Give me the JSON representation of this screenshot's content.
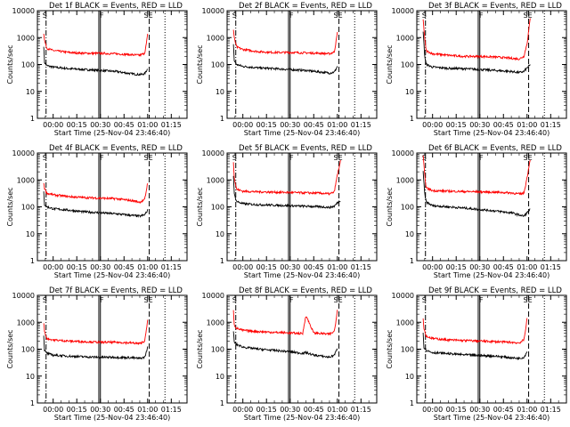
{
  "common": {
    "xlabel": "Start Time (25-Nov-04 23:46:40)",
    "ylabel": "Counts/sec",
    "x_tick_labels": [
      "00:00",
      "00:15",
      "00:30",
      "00:45",
      "01:00",
      "01:15"
    ],
    "x_tick_minutes": [
      0,
      15,
      30,
      45,
      60,
      75
    ],
    "y_tick_labels": [
      "1",
      "10",
      "100",
      "1000",
      "10000"
    ],
    "y_tick_values": [
      1,
      10,
      100,
      1000,
      10000
    ],
    "marker_labels": {
      "start": "S",
      "flare": "F",
      "end": "E"
    },
    "colors": {
      "events": "#000000",
      "lld": "#ff0000"
    }
  },
  "chart_data": [
    {
      "type": "line",
      "title": "Det 1f BLACK = Events, RED = LLD",
      "xlim": [
        -10,
        85
      ],
      "ylim": [
        1,
        10000
      ],
      "yscale": "log",
      "x": [
        -6,
        -5.5,
        -4,
        0,
        10,
        20,
        30,
        40,
        50,
        55,
        58,
        59,
        60
      ],
      "series": [
        {
          "name": "Events",
          "values": [
            500,
            120,
            90,
            80,
            70,
            65,
            60,
            55,
            45,
            42,
            45,
            55,
            70
          ]
        },
        {
          "name": "LLD",
          "values": [
            1500,
            800,
            400,
            330,
            280,
            260,
            260,
            250,
            230,
            220,
            260,
            500,
            1300
          ]
        }
      ],
      "markers": {
        "start": -4.5,
        "flare": [
          29,
          30
        ],
        "end": [
          61,
          71
        ],
        "labels": [
          "S",
          "F",
          "SE"
        ]
      }
    },
    {
      "type": "line",
      "title": "Det 2f BLACK = Events, RED = LLD",
      "xlim": [
        -10,
        85
      ],
      "ylim": [
        1,
        10000
      ],
      "yscale": "log",
      "x": [
        -6,
        -5.5,
        -4,
        0,
        10,
        20,
        30,
        40,
        50,
        55,
        58,
        59,
        60
      ],
      "series": [
        {
          "name": "Events",
          "values": [
            600,
            140,
            100,
            85,
            75,
            70,
            65,
            60,
            52,
            48,
            52,
            65,
            85
          ]
        },
        {
          "name": "LLD",
          "values": [
            2000,
            1000,
            450,
            360,
            300,
            280,
            280,
            270,
            260,
            250,
            290,
            600,
            1500
          ]
        }
      ],
      "markers": {
        "start": -4.5,
        "flare": [
          29,
          30
        ],
        "end": [
          61,
          71
        ],
        "labels": [
          "S",
          "F",
          "SE"
        ]
      }
    },
    {
      "type": "line",
      "title": "Det 3f BLACK = Events, RED = LLD",
      "xlim": [
        -10,
        85
      ],
      "ylim": [
        1,
        10000
      ],
      "yscale": "log",
      "x": [
        -6,
        -5,
        -4,
        0,
        10,
        20,
        30,
        40,
        50,
        55,
        58,
        60,
        62
      ],
      "series": [
        {
          "name": "Events",
          "values": [
            1800,
            200,
            100,
            80,
            72,
            70,
            65,
            60,
            55,
            50,
            55,
            75,
            95
          ]
        },
        {
          "name": "LLD",
          "values": [
            5000,
            900,
            320,
            250,
            220,
            200,
            200,
            190,
            170,
            160,
            200,
            600,
            5000
          ]
        }
      ],
      "markers": {
        "start": -4.5,
        "flare": [
          29,
          30
        ],
        "end": [
          61,
          71
        ],
        "labels": [
          "S",
          "F",
          "SE"
        ]
      }
    },
    {
      "type": "line",
      "title": "Det 4f BLACK = Events, RED = LLD",
      "xlim": [
        -10,
        85
      ],
      "ylim": [
        1,
        10000
      ],
      "yscale": "log",
      "x": [
        -6,
        -5.5,
        -4,
        0,
        10,
        20,
        30,
        40,
        50,
        55,
        58,
        59,
        60
      ],
      "series": [
        {
          "name": "Events",
          "values": [
            400,
            120,
            100,
            85,
            75,
            65,
            60,
            55,
            48,
            45,
            50,
            60,
            75
          ]
        },
        {
          "name": "LLD",
          "values": [
            800,
            500,
            320,
            280,
            240,
            220,
            210,
            200,
            170,
            150,
            180,
            350,
            800
          ]
        }
      ],
      "markers": {
        "start": -4.5,
        "flare": [
          29,
          30
        ],
        "end": [
          61,
          71
        ],
        "labels": [
          "S",
          "F",
          "SE"
        ]
      }
    },
    {
      "type": "line",
      "title": "Det 5f BLACK = Events, RED = LLD",
      "xlim": [
        -10,
        85
      ],
      "ylim": [
        1,
        10000
      ],
      "yscale": "log",
      "x": [
        -6,
        -5.5,
        -4,
        0,
        10,
        20,
        30,
        40,
        50,
        55,
        58,
        60,
        62
      ],
      "series": [
        {
          "name": "Events",
          "values": [
            1500,
            300,
            160,
            130,
            120,
            115,
            110,
            105,
            100,
            95,
            105,
            140,
            170
          ]
        },
        {
          "name": "LLD",
          "values": [
            5000,
            1200,
            450,
            380,
            360,
            350,
            340,
            330,
            320,
            300,
            350,
            1500,
            5000
          ]
        }
      ],
      "markers": {
        "start": -4.5,
        "flare": [
          29,
          30
        ],
        "end": [
          61,
          71
        ],
        "labels": [
          "S",
          "F",
          "SE"
        ]
      }
    },
    {
      "type": "line",
      "title": "Det 6f BLACK = Events, RED = LLD",
      "xlim": [
        -10,
        85
      ],
      "ylim": [
        1,
        10000
      ],
      "yscale": "log",
      "x": [
        -6,
        -5,
        -4,
        0,
        10,
        20,
        30,
        40,
        50,
        55,
        58,
        60,
        62
      ],
      "series": [
        {
          "name": "Events",
          "values": [
            2000,
            300,
            150,
            110,
            100,
            90,
            80,
            70,
            60,
            50,
            45,
            60,
            80
          ]
        },
        {
          "name": "LLD",
          "values": [
            8000,
            1500,
            500,
            400,
            380,
            370,
            360,
            350,
            330,
            300,
            320,
            1200,
            6000
          ]
        }
      ],
      "markers": {
        "start": -4.5,
        "flare": [
          29,
          30
        ],
        "end": [
          61,
          71
        ],
        "labels": [
          "S",
          "F",
          "SE"
        ]
      }
    },
    {
      "type": "line",
      "title": "Det 7f BLACK = Events, RED = LLD",
      "xlim": [
        -10,
        85
      ],
      "ylim": [
        1,
        10000
      ],
      "yscale": "log",
      "x": [
        -6,
        -5.5,
        -4,
        0,
        10,
        20,
        30,
        40,
        50,
        55,
        58,
        59,
        60
      ],
      "series": [
        {
          "name": "Events",
          "values": [
            300,
            90,
            70,
            60,
            55,
            52,
            50,
            50,
            48,
            45,
            50,
            70,
            120
          ]
        },
        {
          "name": "LLD",
          "values": [
            1000,
            450,
            250,
            220,
            200,
            190,
            180,
            180,
            170,
            160,
            200,
            400,
            1200
          ]
        }
      ],
      "markers": {
        "start": -4.5,
        "flare": [
          29,
          30
        ],
        "end": [
          61,
          71
        ],
        "labels": [
          "S",
          "F",
          "SE"
        ]
      }
    },
    {
      "type": "line",
      "title": "Det 8f BLACK = Events, RED = LLD",
      "xlim": [
        -10,
        85
      ],
      "ylim": [
        1,
        10000
      ],
      "yscale": "log",
      "x": [
        -6,
        -5.5,
        -4,
        0,
        10,
        20,
        30,
        38,
        40,
        45,
        50,
        55,
        58,
        59,
        60
      ],
      "series": [
        {
          "name": "Events",
          "values": [
            500,
            180,
            150,
            120,
            100,
            90,
            80,
            70,
            75,
            60,
            55,
            50,
            60,
            80,
            100
          ]
        },
        {
          "name": "LLD",
          "values": [
            3000,
            800,
            600,
            500,
            450,
            420,
            400,
            380,
            1800,
            400,
            380,
            360,
            450,
            1000,
            3000
          ]
        }
      ],
      "markers": {
        "start": -4.5,
        "flare": [
          29,
          30
        ],
        "end": [
          61,
          71
        ],
        "labels": [
          "S",
          "F",
          "SE"
        ]
      }
    },
    {
      "type": "line",
      "title": "Det 9f BLACK = Events, RED = LLD",
      "xlim": [
        -10,
        85
      ],
      "ylim": [
        1,
        10000
      ],
      "yscale": "log",
      "x": [
        -6,
        -5.5,
        -4,
        0,
        10,
        20,
        30,
        40,
        50,
        55,
        58,
        59,
        60
      ],
      "series": [
        {
          "name": "Events",
          "values": [
            400,
            120,
            90,
            75,
            68,
            62,
            58,
            55,
            48,
            45,
            50,
            62,
            80
          ]
        },
        {
          "name": "LLD",
          "values": [
            1500,
            600,
            300,
            250,
            220,
            210,
            200,
            190,
            180,
            170,
            220,
            500,
            1500
          ]
        }
      ],
      "markers": {
        "start": -4.5,
        "flare": [
          29,
          30
        ],
        "end": [
          61,
          71
        ],
        "labels": [
          "S",
          "F",
          "SE"
        ]
      }
    }
  ]
}
